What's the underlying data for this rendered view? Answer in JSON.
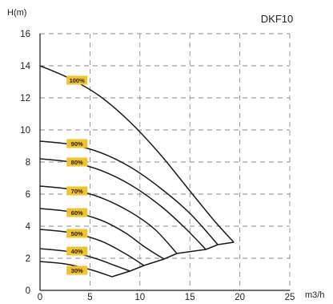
{
  "chart_data": {
    "type": "line",
    "title": "DKF10",
    "xlabel": "m3/h",
    "ylabel": "H(m)",
    "xlim": [
      0,
      25
    ],
    "ylim": [
      0,
      16
    ],
    "x_ticks": [
      "0",
      "5",
      "10",
      "15",
      "20",
      "25"
    ],
    "y_ticks": [
      "0",
      "2",
      "4",
      "6",
      "8",
      "10",
      "12",
      "14",
      "16"
    ],
    "grid": true,
    "series": [
      {
        "name": "100%",
        "points": [
          [
            0,
            14
          ],
          [
            3.0,
            13.2
          ],
          [
            6.0,
            12.1
          ],
          [
            9.0,
            10.5
          ],
          [
            12.0,
            8.5
          ],
          [
            15.0,
            6.2
          ],
          [
            17.5,
            4.3
          ],
          [
            19.4,
            3.0
          ]
        ]
      },
      {
        "name": "90%",
        "points": [
          [
            0,
            9.3
          ],
          [
            3.0,
            9.1
          ],
          [
            6.0,
            8.6
          ],
          [
            9.0,
            7.7
          ],
          [
            12.0,
            6.4
          ],
          [
            15.0,
            4.8
          ],
          [
            17.8,
            2.85
          ]
        ]
      },
      {
        "name": "80%",
        "points": [
          [
            0,
            8.2
          ],
          [
            3.0,
            8.0
          ],
          [
            6.0,
            7.5
          ],
          [
            9.0,
            6.6
          ],
          [
            12.0,
            5.3
          ],
          [
            14.5,
            3.9
          ],
          [
            16.6,
            2.55
          ]
        ]
      },
      {
        "name": "70%",
        "points": [
          [
            0,
            6.5
          ],
          [
            3.0,
            6.3
          ],
          [
            6.0,
            5.8
          ],
          [
            9.0,
            4.9
          ],
          [
            11.5,
            3.8
          ],
          [
            13.7,
            2.3
          ]
        ]
      },
      {
        "name": "60%",
        "points": [
          [
            0,
            5.1
          ],
          [
            3.0,
            4.9
          ],
          [
            6.0,
            4.4
          ],
          [
            8.5,
            3.6
          ],
          [
            10.5,
            2.7
          ],
          [
            12.4,
            1.95
          ]
        ]
      },
      {
        "name": "50%",
        "points": [
          [
            0,
            3.8
          ],
          [
            3.0,
            3.6
          ],
          [
            6.0,
            3.1
          ],
          [
            8.5,
            2.3
          ],
          [
            10.4,
            1.55
          ]
        ]
      },
      {
        "name": "40%",
        "points": [
          [
            0,
            2.6
          ],
          [
            3.0,
            2.4
          ],
          [
            5.5,
            2.0
          ],
          [
            7.5,
            1.55
          ],
          [
            9.0,
            1.2
          ]
        ]
      },
      {
        "name": "30%",
        "points": [
          [
            0,
            1.8
          ],
          [
            2.5,
            1.65
          ],
          [
            5.0,
            1.3
          ],
          [
            7.2,
            0.85
          ]
        ]
      }
    ],
    "efficiency_line": {
      "points": [
        [
          7.2,
          0.85
        ],
        [
          9.0,
          1.2
        ],
        [
          10.4,
          1.55
        ],
        [
          12.4,
          1.95
        ],
        [
          13.7,
          2.3
        ],
        [
          16.6,
          2.55
        ],
        [
          17.8,
          2.85
        ],
        [
          19.4,
          3.0
        ]
      ]
    },
    "curve_labels": [
      {
        "series": "100%",
        "x": 3.7,
        "y": 13.1
      },
      {
        "series": "90%",
        "x": 3.7,
        "y": 9.15
      },
      {
        "series": "80%",
        "x": 3.7,
        "y": 8.0
      },
      {
        "series": "70%",
        "x": 3.7,
        "y": 6.2
      },
      {
        "series": "60%",
        "x": 3.7,
        "y": 4.85
      },
      {
        "series": "50%",
        "x": 3.7,
        "y": 3.55
      },
      {
        "series": "40%",
        "x": 3.7,
        "y": 2.45
      },
      {
        "series": "30%",
        "x": 3.7,
        "y": 1.25
      }
    ],
    "colors": {
      "curve": "#1a1a1a",
      "grid": "#8a8a8a",
      "label_bg": "#f2c12e",
      "axis": "#1a1a1a"
    }
  }
}
